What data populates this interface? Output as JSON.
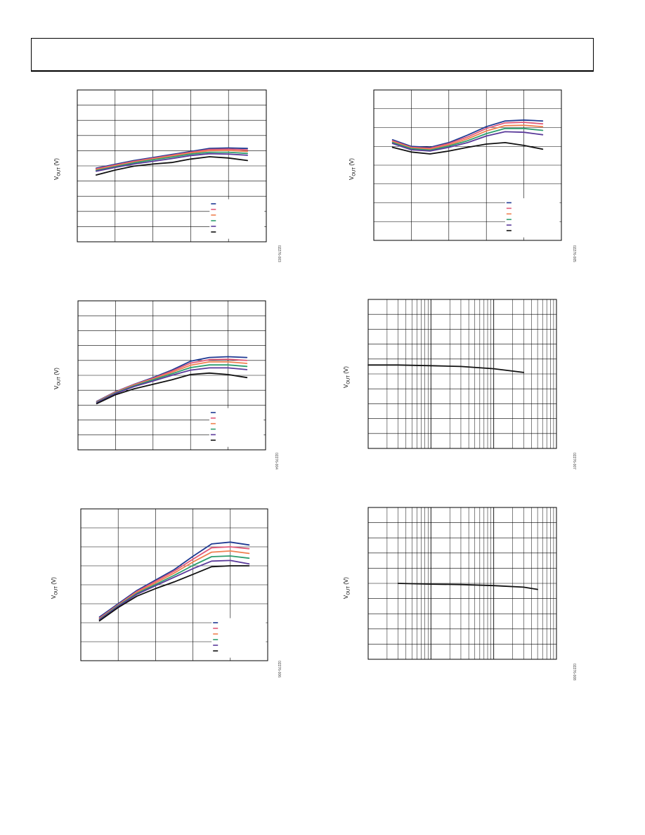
{
  "chart_data": [
    {
      "type": "line",
      "xlim": [
        0,
        5
      ],
      "ylim": [
        0,
        10
      ],
      "grid": true,
      "legend": "bottom-right",
      "ylabel": "V",
      "ylabel_sub": "OUT",
      "ylabel_unit": " (V)",
      "figure_id": "02276-003",
      "x": [
        0.5,
        1,
        1.5,
        2,
        2.5,
        3,
        3.5,
        4,
        4.5
      ],
      "series": [
        {
          "color": "#1f3a93",
          "values": [
            4.85,
            5.1,
            5.35,
            5.55,
            5.75,
            5.95,
            6.15,
            6.18,
            6.15
          ]
        },
        {
          "color": "#e05a7a",
          "values": [
            4.8,
            5.05,
            5.3,
            5.5,
            5.7,
            5.9,
            6.08,
            6.1,
            6.05
          ]
        },
        {
          "color": "#f08050",
          "values": [
            4.75,
            5.0,
            5.25,
            5.45,
            5.65,
            5.85,
            6.0,
            6.02,
            5.95
          ]
        },
        {
          "color": "#2e9e6e",
          "values": [
            4.7,
            4.95,
            5.2,
            5.4,
            5.58,
            5.78,
            5.9,
            5.9,
            5.82
          ]
        },
        {
          "color": "#5a3a9a",
          "values": [
            4.65,
            4.9,
            5.12,
            5.3,
            5.48,
            5.68,
            5.8,
            5.78,
            5.7
          ]
        },
        {
          "color": "#111111",
          "values": [
            4.4,
            4.72,
            4.98,
            5.12,
            5.22,
            5.45,
            5.6,
            5.52,
            5.35
          ]
        }
      ]
    },
    {
      "type": "line",
      "xlim": [
        0,
        5
      ],
      "ylim": [
        0,
        8
      ],
      "grid": true,
      "legend": "bottom-right",
      "ylabel": "V",
      "ylabel_sub": "OUT",
      "ylabel_unit": " (V)",
      "figure_id": "02276-005",
      "x": [
        0.5,
        1,
        1.5,
        2,
        2.5,
        3,
        3.5,
        4,
        4.5
      ],
      "series": [
        {
          "color": "#1f3a93",
          "values": [
            5.35,
            5.0,
            4.95,
            5.2,
            5.6,
            6.05,
            6.35,
            6.4,
            6.35
          ]
        },
        {
          "color": "#e05a7a",
          "values": [
            5.3,
            4.95,
            4.9,
            5.15,
            5.5,
            5.95,
            6.25,
            6.28,
            6.2
          ]
        },
        {
          "color": "#f08050",
          "values": [
            5.25,
            4.92,
            4.85,
            5.08,
            5.4,
            5.82,
            6.1,
            6.12,
            6.05
          ]
        },
        {
          "color": "#2e9e6e",
          "values": [
            5.2,
            4.88,
            4.8,
            5.02,
            5.3,
            5.68,
            5.95,
            5.95,
            5.85
          ]
        },
        {
          "color": "#5a3a9a",
          "values": [
            5.15,
            4.82,
            4.75,
            4.95,
            5.2,
            5.55,
            5.78,
            5.75,
            5.62
          ]
        },
        {
          "color": "#111111",
          "values": [
            4.95,
            4.7,
            4.6,
            4.75,
            4.95,
            5.12,
            5.2,
            5.05,
            4.85
          ]
        }
      ]
    },
    {
      "type": "line",
      "xlim": [
        0,
        5
      ],
      "ylim": [
        0,
        10
      ],
      "grid": true,
      "legend": "bottom-right",
      "ylabel": "V",
      "ylabel_sub": "OUT",
      "ylabel_unit": " (V)",
      "figure_id": "02276-004",
      "x": [
        0.5,
        1,
        1.5,
        2,
        2.5,
        3,
        3.5,
        4,
        4.5
      ],
      "series": [
        {
          "color": "#1f3a93",
          "values": [
            3.25,
            3.9,
            4.4,
            4.85,
            5.35,
            5.95,
            6.2,
            6.25,
            6.2
          ]
        },
        {
          "color": "#e05a7a",
          "values": [
            3.22,
            3.88,
            4.38,
            4.8,
            5.28,
            5.82,
            6.05,
            6.08,
            6.0
          ]
        },
        {
          "color": "#f08050",
          "values": [
            3.2,
            3.85,
            4.35,
            4.75,
            5.2,
            5.68,
            5.9,
            5.9,
            5.8
          ]
        },
        {
          "color": "#2e9e6e",
          "values": [
            3.18,
            3.82,
            4.3,
            4.7,
            5.1,
            5.52,
            5.7,
            5.7,
            5.6
          ]
        },
        {
          "color": "#5a3a9a",
          "values": [
            3.15,
            3.78,
            4.25,
            4.62,
            5.0,
            5.35,
            5.5,
            5.5,
            5.38
          ]
        },
        {
          "color": "#111111",
          "values": [
            3.1,
            3.7,
            4.1,
            4.4,
            4.7,
            5.05,
            5.15,
            5.05,
            4.85
          ]
        }
      ]
    },
    {
      "type": "line",
      "xscale": "log",
      "xlim": [
        1,
        1000
      ],
      "ylim": [
        0,
        10
      ],
      "grid": true,
      "ylabel": "V",
      "ylabel_sub": "OUT",
      "ylabel_unit": " (V)",
      "figure_id": "02276-007",
      "x": [
        1,
        3,
        10,
        30,
        100,
        300
      ],
      "series": [
        {
          "color": "#111111",
          "values": [
            5.6,
            5.6,
            5.55,
            5.5,
            5.35,
            5.1
          ]
        }
      ]
    },
    {
      "type": "line",
      "xlim": [
        0,
        5
      ],
      "ylim": [
        0,
        8
      ],
      "grid": true,
      "legend": "bottom-right",
      "ylabel": "V",
      "ylabel_sub": "OUT",
      "ylabel_unit": " (V)",
      "figure_id": "02276-006",
      "x": [
        0.5,
        1,
        1.5,
        2,
        2.5,
        3,
        3.5,
        4,
        4.5
      ],
      "series": [
        {
          "color": "#1f3a93",
          "values": [
            2.3,
            3.0,
            3.7,
            4.25,
            4.8,
            5.5,
            6.15,
            6.25,
            6.1
          ]
        },
        {
          "color": "#e05a7a",
          "values": [
            2.25,
            2.95,
            3.65,
            4.18,
            4.72,
            5.35,
            5.95,
            6.0,
            5.9
          ]
        },
        {
          "color": "#f08050",
          "values": [
            2.2,
            2.92,
            3.6,
            4.1,
            4.62,
            5.2,
            5.72,
            5.78,
            5.65
          ]
        },
        {
          "color": "#2e9e6e",
          "values": [
            2.18,
            2.9,
            3.55,
            4.02,
            4.5,
            5.02,
            5.48,
            5.52,
            5.4
          ]
        },
        {
          "color": "#5a3a9a",
          "values": [
            2.15,
            2.86,
            3.5,
            3.95,
            4.4,
            4.85,
            5.25,
            5.28,
            5.1
          ]
        },
        {
          "color": "#111111",
          "values": [
            2.1,
            2.8,
            3.4,
            3.8,
            4.15,
            4.55,
            4.95,
            5.0,
            5.0
          ]
        }
      ]
    },
    {
      "type": "line",
      "xscale": "log",
      "xlim": [
        1,
        1000
      ],
      "ylim": [
        0,
        10
      ],
      "grid": true,
      "ylabel": "V",
      "ylabel_sub": "OUT",
      "ylabel_unit": " (V)",
      "figure_id": "02276-008",
      "x": [
        3,
        10,
        30,
        100,
        300,
        500
      ],
      "series": [
        {
          "color": "#111111",
          "values": [
            5.0,
            4.95,
            4.92,
            4.85,
            4.75,
            4.6
          ]
        }
      ]
    }
  ]
}
